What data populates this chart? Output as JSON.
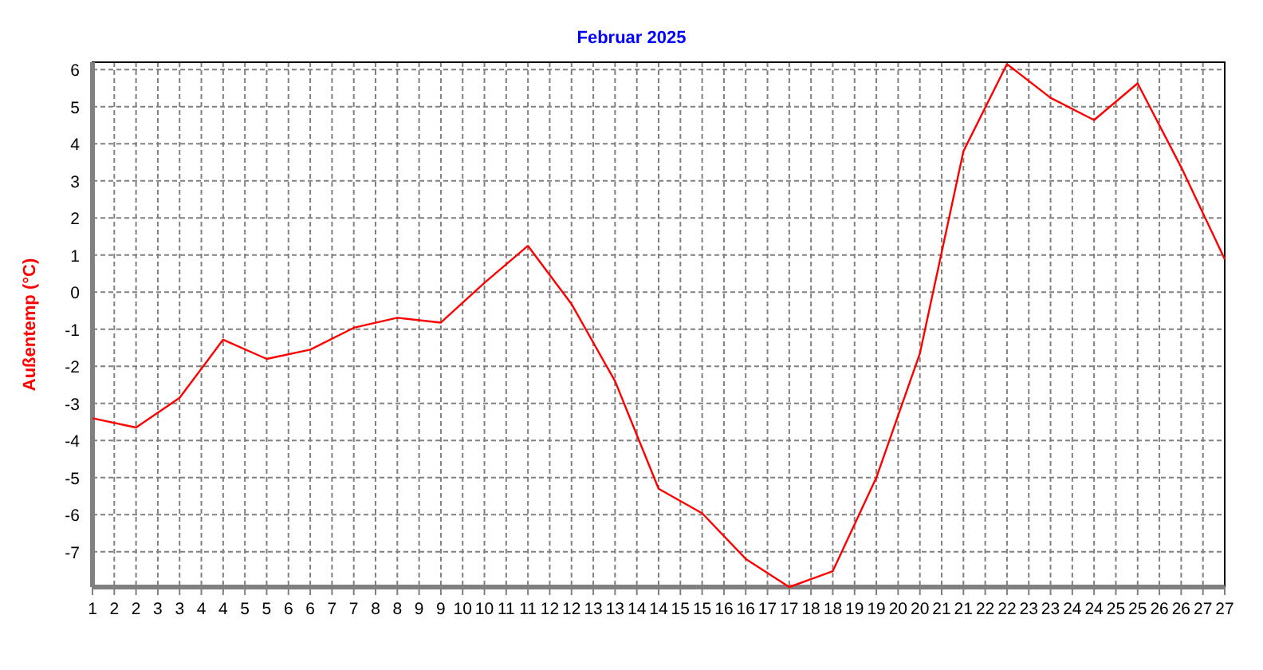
{
  "chart_data": {
    "type": "line",
    "title": "Februar 2025",
    "ylabel": "Außentemp  (°C)",
    "x": [
      1,
      2,
      3,
      4,
      5,
      6,
      7,
      8,
      9,
      10,
      11,
      12,
      13,
      14,
      15,
      16,
      17,
      18,
      19,
      20,
      21,
      22,
      23,
      24,
      25,
      26,
      27
    ],
    "series": [
      {
        "color": "#ff0000",
        "values": [
          -3.4,
          -3.65,
          -2.85,
          -1.28,
          -1.8,
          -1.55,
          -0.96,
          -0.69,
          -0.82,
          0.25,
          1.25,
          -0.32,
          -2.4,
          -5.3,
          -5.96,
          -7.19,
          -7.95,
          -7.52,
          -5.0,
          -1.65,
          3.8,
          6.15,
          5.24,
          4.64,
          5.63,
          3.37,
          0.89
        ]
      }
    ],
    "xlim": [
      1,
      27
    ],
    "xticks": [
      1,
      {
        "value": 1.5,
        "label": "2"
      },
      2,
      {
        "value": 2.5,
        "label": "3"
      },
      3,
      {
        "value": 3.5,
        "label": "4"
      },
      4,
      {
        "value": 4.5,
        "label": "5"
      },
      5,
      {
        "value": 5.5,
        "label": "6"
      },
      6,
      {
        "value": 6.5,
        "label": "7"
      },
      7,
      {
        "value": 7.5,
        "label": "8"
      },
      8,
      {
        "value": 8.5,
        "label": "9"
      },
      9,
      {
        "value": 9.5,
        "label": "10"
      },
      10,
      {
        "value": 10.5,
        "label": "11"
      },
      11,
      {
        "value": 11.5,
        "label": "12"
      },
      12,
      {
        "value": 12.5,
        "label": "13"
      },
      13,
      {
        "value": 13.5,
        "label": "14"
      },
      14,
      {
        "value": 14.5,
        "label": "15"
      },
      15,
      {
        "value": 15.5,
        "label": "16"
      },
      16,
      {
        "value": 16.5,
        "label": "17"
      },
      17,
      {
        "value": 17.5,
        "label": "18"
      },
      18,
      {
        "value": 18.5,
        "label": "19"
      },
      19,
      {
        "value": 19.5,
        "label": "20"
      },
      20,
      {
        "value": 20.5,
        "label": "21"
      },
      21,
      {
        "value": 21.5,
        "label": "22"
      },
      22,
      {
        "value": 22.5,
        "label": "23"
      },
      23,
      {
        "value": 23.5,
        "label": "24"
      },
      24,
      {
        "value": 24.5,
        "label": "25"
      },
      25,
      {
        "value": 25.5,
        "label": "26"
      },
      26,
      {
        "value": 26.5,
        "label": "27"
      },
      27
    ],
    "ylim": [
      -7.95,
      6.2
    ],
    "yticks": [
      -7,
      -6,
      -5,
      -4,
      -3,
      -2,
      -1,
      0,
      1,
      2,
      3,
      4,
      5,
      6
    ],
    "grid": true,
    "marker": "none",
    "line_style": "solid"
  }
}
